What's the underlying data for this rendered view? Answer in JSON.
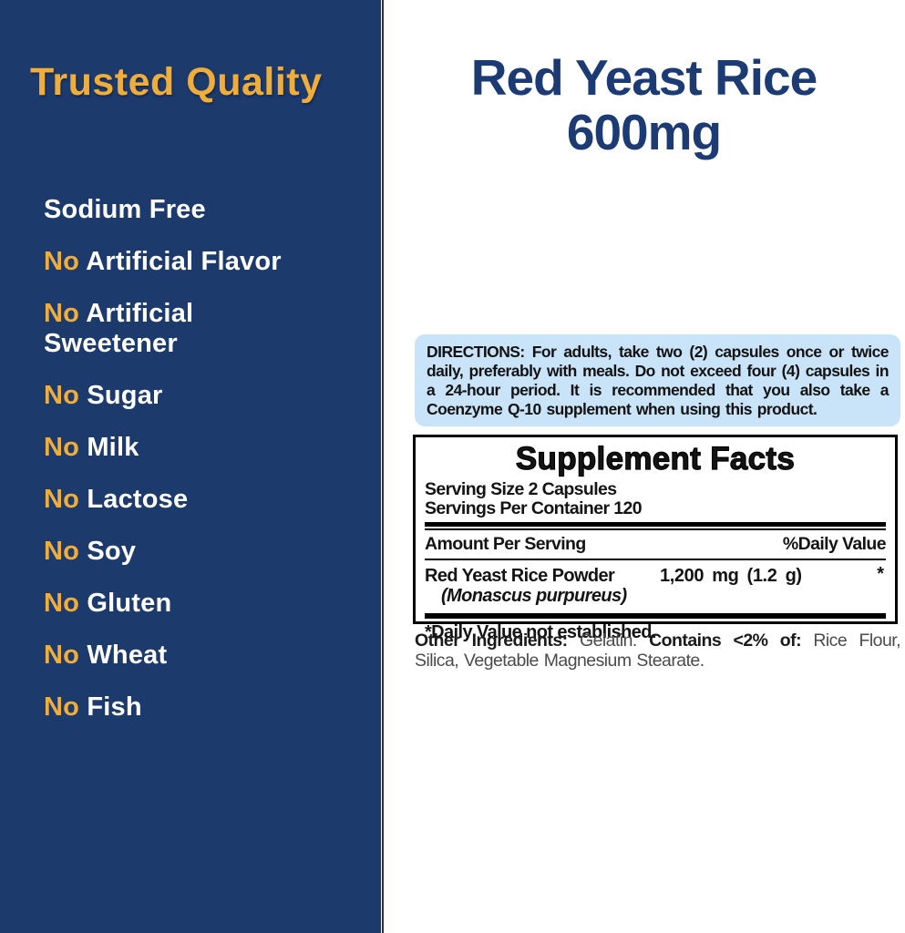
{
  "colors": {
    "panel_navy": "#1d3a6d",
    "panel_edge_navy": "#1b3462",
    "gold": "#efae3b",
    "title_navy": "#1c3a74",
    "directions_bg": "#c9e4f8",
    "text_black": "#141414",
    "text_gray": "#4b4b4b"
  },
  "left_panel": {
    "heading": "Trusted Quality",
    "claims": [
      {
        "no": "",
        "label": "Sodium Free"
      },
      {
        "no": "No ",
        "label": "Artificial Flavor"
      },
      {
        "no": "No ",
        "label": "Artificial Sweetener"
      },
      {
        "no": "No ",
        "label": "Sugar"
      },
      {
        "no": "No ",
        "label": "Milk"
      },
      {
        "no": "No ",
        "label": "Lactose"
      },
      {
        "no": "No ",
        "label": "Soy"
      },
      {
        "no": "No ",
        "label": "Gluten"
      },
      {
        "no": "No ",
        "label": "Wheat"
      },
      {
        "no": "No ",
        "label": "Fish"
      }
    ]
  },
  "product": {
    "title_line1": "Red Yeast Rice",
    "title_line2": "600mg"
  },
  "directions": {
    "text": "DIRECTIONS: For adults, take two (2) capsules once or twice daily, preferably with meals. Do not exceed four (4) capsules in a 24-hour period. It is recommended that you also take a Coenzyme Q-10 supplement when using this product."
  },
  "supplement_facts": {
    "title": "Supplement Facts",
    "serving_size": "Serving Size 2 Capsules",
    "servings_per_container": "Servings Per Container 120",
    "amount_header": "Amount Per Serving",
    "dv_header": "%Daily Value",
    "rows": [
      {
        "name": "Red Yeast Rice Powder",
        "latin": "(Monascus purpureus)",
        "amount": "1,200 mg (1.2 g)",
        "dv": "*"
      }
    ],
    "footnote": "*Daily Value not established."
  },
  "other_ingredients": {
    "bold1": "Other Ingredients:",
    "text1": " Gelatin. ",
    "bold2": "Contains <2% of:",
    "text2": " Rice Flour, Silica, Vegetable Magnesium Stearate."
  }
}
